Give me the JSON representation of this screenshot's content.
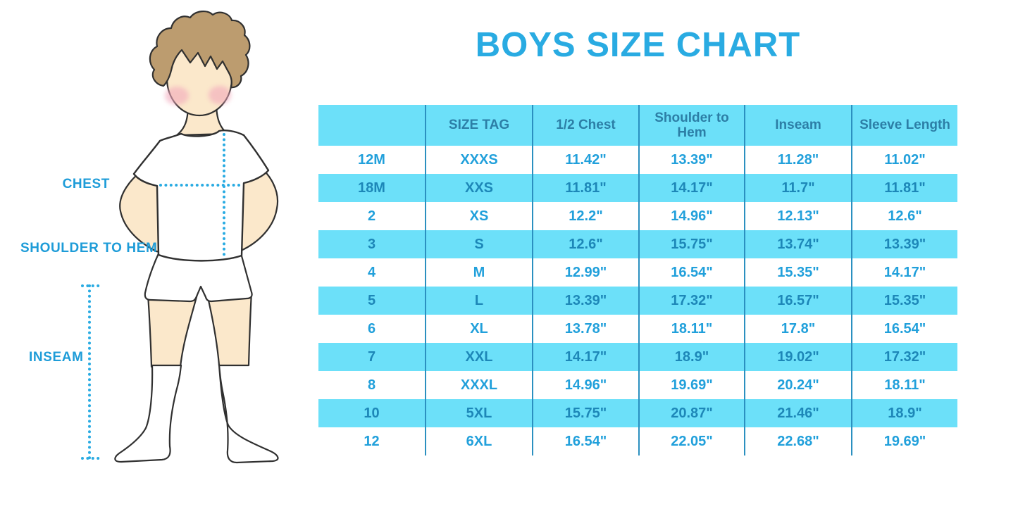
{
  "title": "BOYS SIZE CHART",
  "figure_labels": {
    "chest": "CHEST",
    "shoulder_to_hem": "SHOULDER TO HEM",
    "inseam": "INSEAM"
  },
  "chart_data": {
    "type": "table",
    "title": "BOYS SIZE CHART",
    "columns": [
      "",
      "SIZE TAG",
      "1/2 Chest",
      "Shoulder to Hem",
      "Inseam",
      "Sleeve Length"
    ],
    "rows": [
      [
        "12M",
        "XXXS",
        "11.42\"",
        "13.39\"",
        "11.28\"",
        "11.02\""
      ],
      [
        "18M",
        "XXS",
        "11.81\"",
        "14.17\"",
        "11.7\"",
        "11.81\""
      ],
      [
        "2",
        "XS",
        "12.2\"",
        "14.96\"",
        "12.13\"",
        "12.6\""
      ],
      [
        "3",
        "S",
        "12.6\"",
        "15.75\"",
        "13.74\"",
        "13.39\""
      ],
      [
        "4",
        "M",
        "12.99\"",
        "16.54\"",
        "15.35\"",
        "14.17\""
      ],
      [
        "5",
        "L",
        "13.39\"",
        "17.32\"",
        "16.57\"",
        "15.35\""
      ],
      [
        "6",
        "XL",
        "13.78\"",
        "18.11\"",
        "17.8\"",
        "16.54\""
      ],
      [
        "7",
        "XXL",
        "14.17\"",
        "18.9\"",
        "19.02\"",
        "17.32\""
      ],
      [
        "8",
        "XXXL",
        "14.96\"",
        "19.69\"",
        "20.24\"",
        "18.11\""
      ],
      [
        "10",
        "5XL",
        "15.75\"",
        "20.87\"",
        "21.46\"",
        "18.9\""
      ],
      [
        "12",
        "6XL",
        "16.54\"",
        "22.05\"",
        "22.68\"",
        "19.69\""
      ]
    ],
    "layout": {
      "header_position": "top",
      "alternating_row_colors": true,
      "grid": "vertical-separators-only"
    }
  },
  "colors": {
    "title_blue": "#29ABE2",
    "row_blue": "#6CE0F9",
    "header_text": "#2C7EA6",
    "body_text_on_white": "#21A0DB",
    "body_text_on_blue": "#1D87B8",
    "separator": "#2B90C0",
    "label_blue": "#1E9CD8",
    "dotted_line": "#29ABE2",
    "skin": "#FBE8CB",
    "hair": "#BC9C6F",
    "blush": "#F2A9BC",
    "outline": "#303030"
  }
}
